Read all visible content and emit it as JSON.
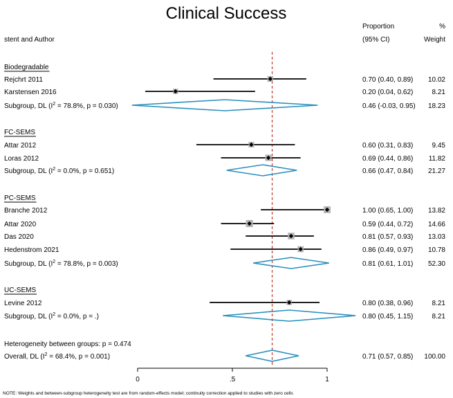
{
  "chart_data": {
    "type": "forest",
    "title": "Clinical Success",
    "columns": {
      "study": "stent and Author",
      "estimate_line1": "Proportion",
      "estimate_line2": "(95% CI)",
      "weight_line1": "%",
      "weight_line2": "Weight"
    },
    "x_axis": {
      "range": [
        0,
        1
      ],
      "ticks": [
        0,
        0.5,
        1
      ],
      "tick_labels": [
        "0",
        ".5",
        "1"
      ]
    },
    "overall_line": 0.71,
    "rows": [
      {
        "kind": "header",
        "label": "Biodegradable"
      },
      {
        "kind": "study",
        "label": "Rejchrt 2011",
        "est": 0.7,
        "lo": 0.4,
        "hi": 0.89,
        "ci_text": "0.70 (0.40, 0.89)",
        "weight": "10.02",
        "w": 10.02
      },
      {
        "kind": "study",
        "label": "Karstensen 2016",
        "est": 0.2,
        "lo": 0.04,
        "hi": 0.62,
        "ci_text": "0.20 (0.04, 0.62)",
        "weight": "8.21",
        "w": 8.21
      },
      {
        "kind": "subgroup",
        "label_pre": "Subgroup, DL (I",
        "sup": "2",
        "label_post": " = 78.8%, p = 0.030)",
        "est": 0.46,
        "lo": -0.03,
        "hi": 0.95,
        "ci_text": "0.46 (-0.03, 0.95)",
        "weight": "18.23"
      },
      {
        "kind": "header",
        "label": "FC-SEMS"
      },
      {
        "kind": "study",
        "label": "Attar 2012",
        "est": 0.6,
        "lo": 0.31,
        "hi": 0.83,
        "ci_text": "0.60 (0.31, 0.83)",
        "weight": "9.45",
        "w": 9.45
      },
      {
        "kind": "study",
        "label": "Loras 2012",
        "est": 0.69,
        "lo": 0.44,
        "hi": 0.86,
        "ci_text": "0.69 (0.44, 0.86)",
        "weight": "11.82",
        "w": 11.82
      },
      {
        "kind": "subgroup",
        "label_pre": "Subgroup, DL (I",
        "sup": "2",
        "label_post": " = 0.0%, p = 0.651)",
        "est": 0.66,
        "lo": 0.47,
        "hi": 0.84,
        "ci_text": "0.66 (0.47, 0.84)",
        "weight": "21.27"
      },
      {
        "kind": "header",
        "label": "PC-SEMS"
      },
      {
        "kind": "study",
        "label": "Branche 2012",
        "est": 1.0,
        "lo": 0.65,
        "hi": 1.0,
        "ci_text": "1.00 (0.65, 1.00)",
        "weight": "13.82",
        "w": 13.82
      },
      {
        "kind": "study",
        "label": "Attar 2020",
        "est": 0.59,
        "lo": 0.44,
        "hi": 0.72,
        "ci_text": "0.59 (0.44, 0.72)",
        "weight": "14.66",
        "w": 14.66
      },
      {
        "kind": "study",
        "label": "Das 2020",
        "est": 0.81,
        "lo": 0.57,
        "hi": 0.93,
        "ci_text": "0.81 (0.57, 0.93)",
        "weight": "13.03",
        "w": 13.03
      },
      {
        "kind": "study",
        "label": "Hedenstrom 2021",
        "est": 0.86,
        "lo": 0.49,
        "hi": 0.97,
        "ci_text": "0.86 (0.49, 0.97)",
        "weight": "10.78",
        "w": 10.78
      },
      {
        "kind": "subgroup",
        "label_pre": "Subgroup, DL (I",
        "sup": "2",
        "label_post": " = 78.8%, p = 0.003)",
        "est": 0.81,
        "lo": 0.61,
        "hi": 1.01,
        "ci_text": "0.81 (0.61, 1.01)",
        "weight": "52.30"
      },
      {
        "kind": "header",
        "label": "UC-SEMS"
      },
      {
        "kind": "study",
        "label": "Levine 2012",
        "est": 0.8,
        "lo": 0.38,
        "hi": 0.96,
        "ci_text": "0.80 (0.38, 0.96)",
        "weight": "8.21",
        "w": 8.21
      },
      {
        "kind": "subgroup",
        "label_pre": "Subgroup, DL (I",
        "sup": "2",
        "label_post": " = 0.0%, p = .)",
        "est": 0.8,
        "lo": 0.45,
        "hi": 1.15,
        "ci_text": "0.80 (0.45, 1.15)",
        "weight": "8.21"
      },
      {
        "kind": "text",
        "label": "Heterogeneity between groups: p = 0.474"
      },
      {
        "kind": "overall",
        "label_pre": "Overall, DL (I",
        "sup": "2",
        "label_post": " = 68.4%, p = 0.001)",
        "est": 0.71,
        "lo": 0.57,
        "hi": 0.85,
        "ci_text": "0.71 (0.57, 0.85)",
        "weight": "100.00"
      }
    ],
    "note": "NOTE: Weights and between-subgroup heterogeneity test are from random-effects model; continuity correction applied to studies with zero cells",
    "colors": {
      "diamond": "#2a8fbd",
      "ref_line": "#c0392b",
      "ci_line": "#000000",
      "weight_box": "#b3b3b3",
      "point": "#000000"
    }
  }
}
